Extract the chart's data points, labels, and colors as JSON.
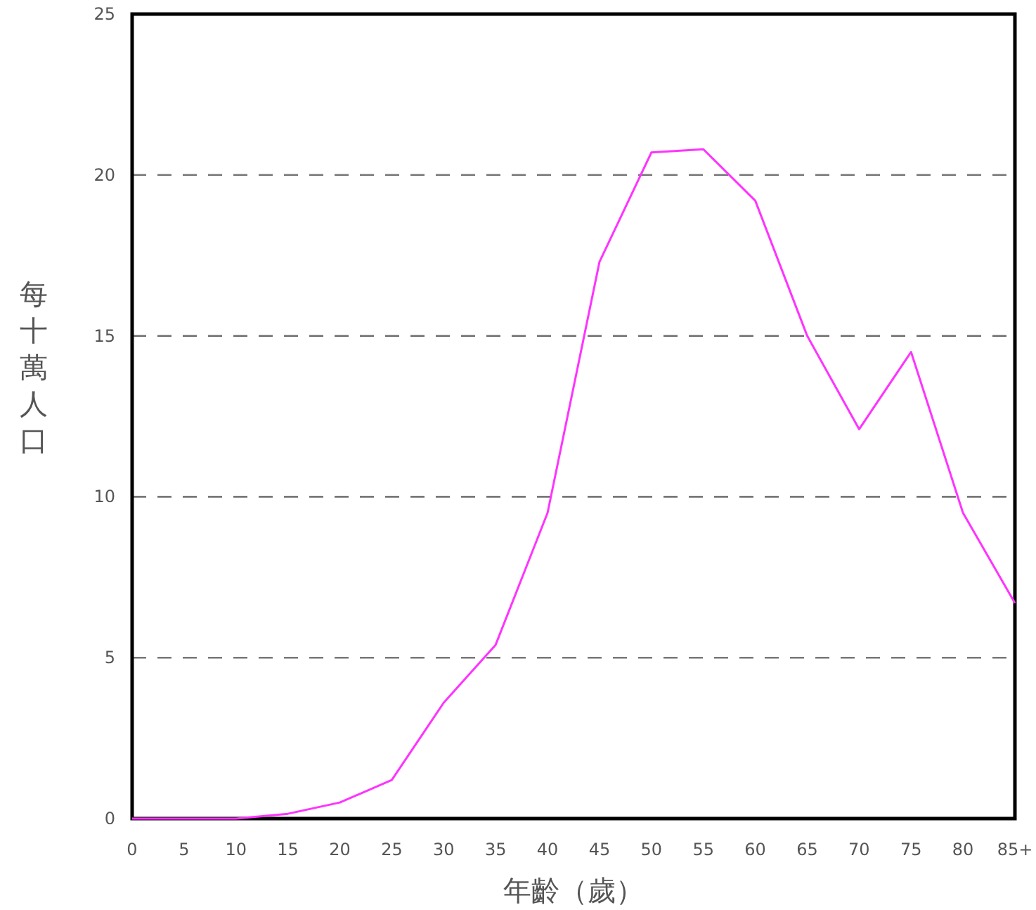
{
  "chart_data": {
    "type": "line",
    "xlabel": "年齡（歲）",
    "ylabel": "每十萬人口",
    "categories": [
      "0",
      "5",
      "10",
      "15",
      "20",
      "25",
      "30",
      "35",
      "40",
      "45",
      "50",
      "55",
      "60",
      "65",
      "70",
      "75",
      "80",
      "85+"
    ],
    "series": [
      {
        "color": "#ff33ff",
        "values": [
          0,
          0,
          0,
          0.15,
          0.5,
          1.2,
          3.6,
          5.4,
          9.5,
          17.3,
          20.7,
          20.8,
          19.2,
          15,
          12.1,
          14.5,
          9.5,
          6.7
        ]
      }
    ],
    "ylim": [
      0,
      25
    ],
    "yticks": [
      0,
      5,
      10,
      15,
      20,
      25
    ],
    "grid": "y",
    "line_style": "solid",
    "marker": "none"
  }
}
